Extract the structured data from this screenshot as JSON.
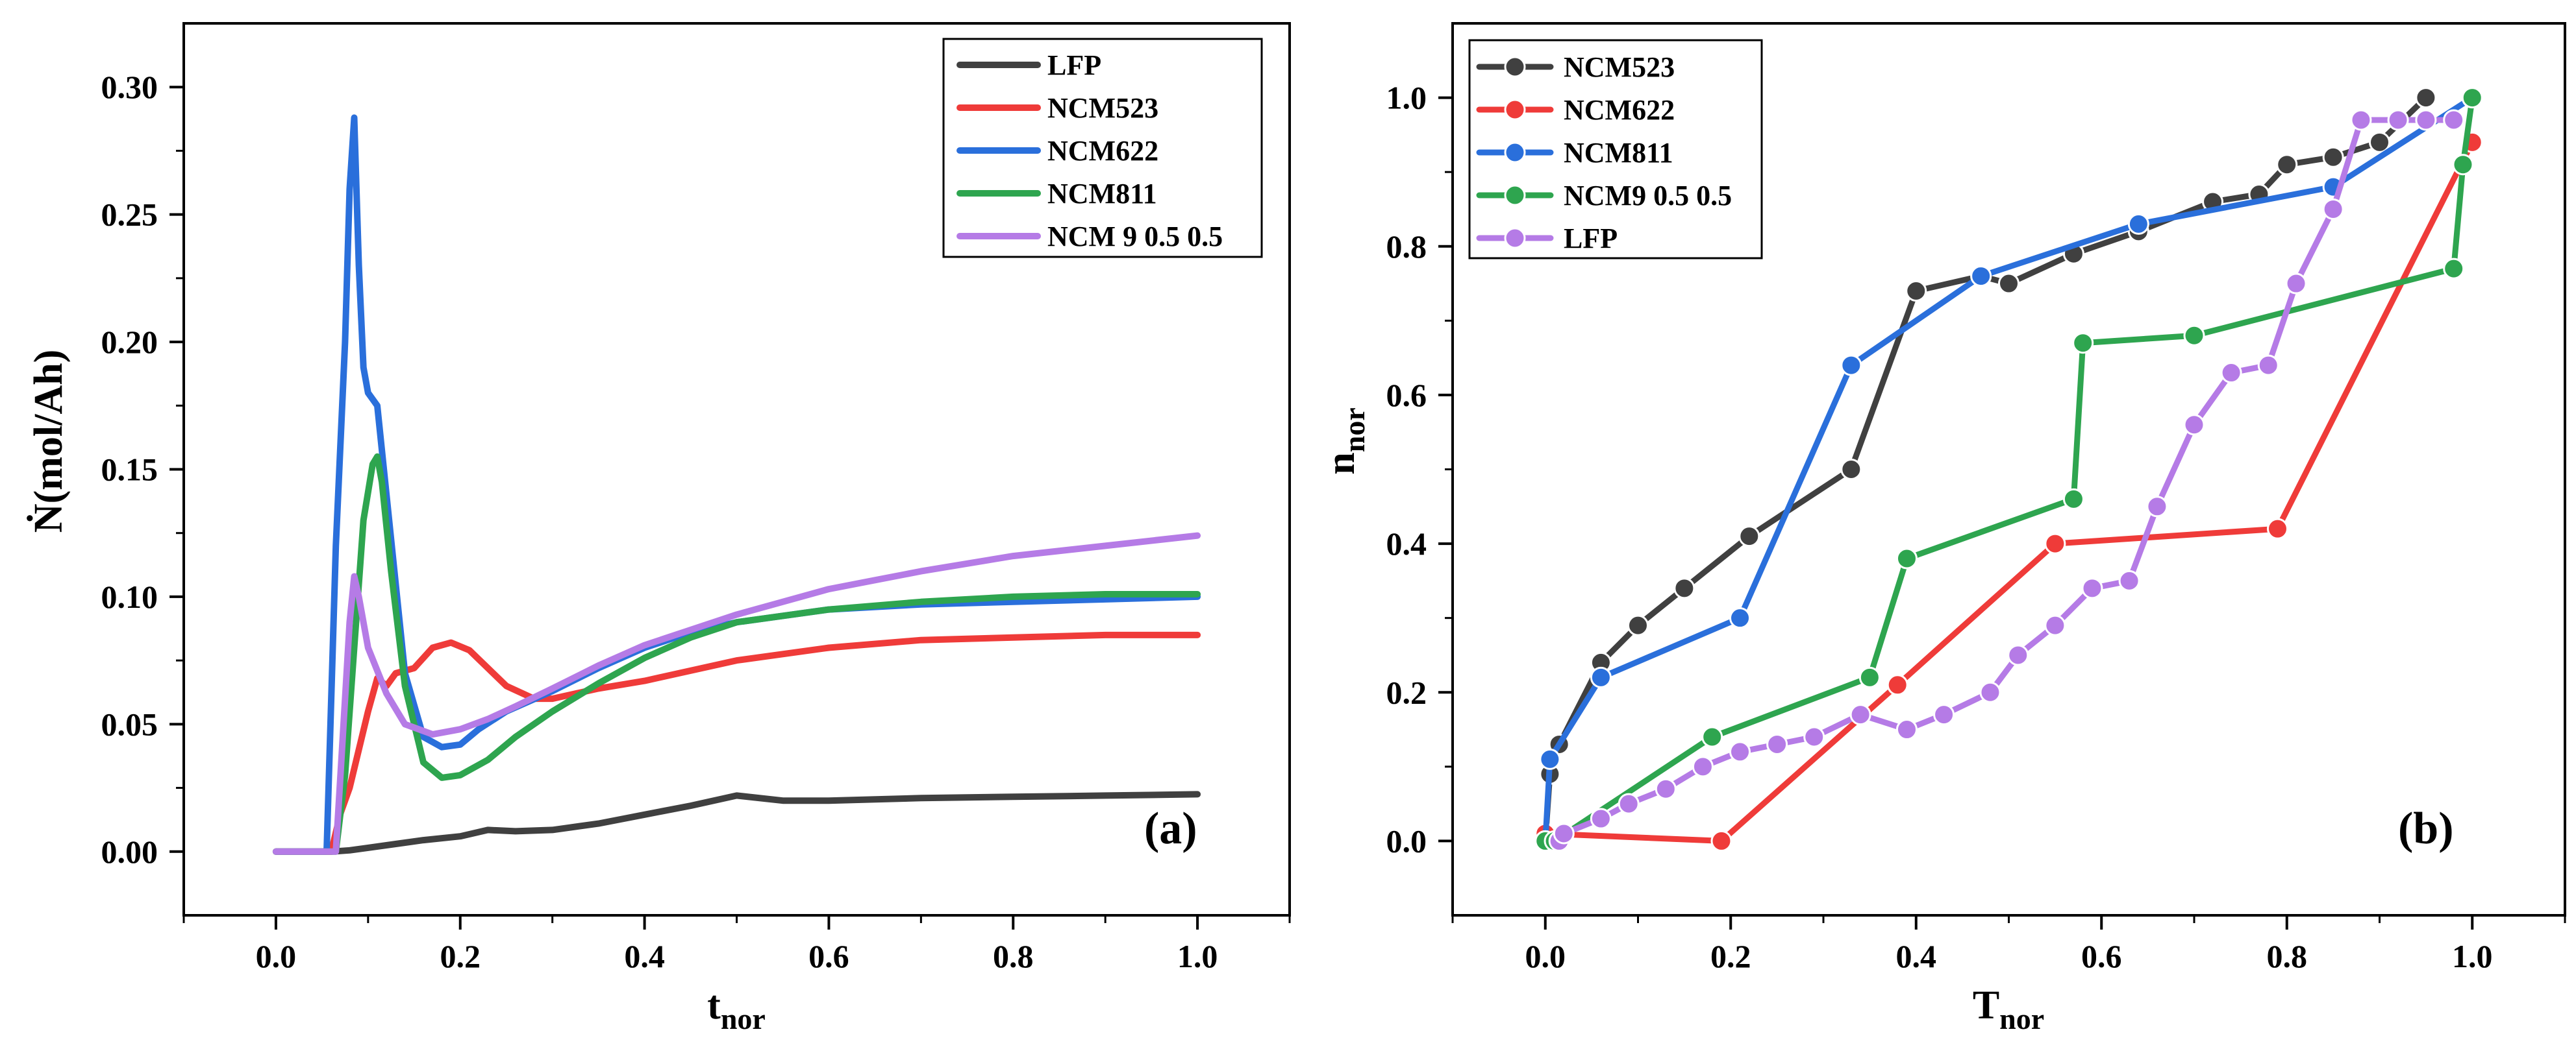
{
  "chart_data": [
    {
      "type": "line",
      "panel_label": "(a)",
      "title": "",
      "xlabel_main": "t",
      "xlabel_sub": "nor",
      "ylabel": "Ṅ(mol/Ah)",
      "xlim": [
        -0.1,
        1.1
      ],
      "ylim": [
        -0.025,
        0.325
      ],
      "xticks": [
        0.0,
        0.2,
        0.4,
        0.6,
        0.8,
        1.0
      ],
      "xtick_labels": [
        "0.0",
        "0.2",
        "0.4",
        "0.6",
        "0.8",
        "1.0"
      ],
      "yticks": [
        0.0,
        0.05,
        0.1,
        0.15,
        0.2,
        0.25,
        0.3
      ],
      "ytick_labels": [
        "0.00",
        "0.05",
        "0.10",
        "0.15",
        "0.20",
        "0.25",
        "0.30"
      ],
      "legend_position": "top-right",
      "series": [
        {
          "name": "LFP",
          "color": "#404040",
          "x": [
            0,
            0.06,
            0.08,
            0.1,
            0.13,
            0.16,
            0.2,
            0.23,
            0.26,
            0.3,
            0.35,
            0.4,
            0.45,
            0.5,
            0.55,
            0.6,
            0.7,
            0.8,
            0.9,
            1.0
          ],
          "y": [
            0,
            0,
            0.0005,
            0.0015,
            0.003,
            0.0045,
            0.006,
            0.0085,
            0.008,
            0.0085,
            0.011,
            0.0145,
            0.018,
            0.022,
            0.02,
            0.02,
            0.021,
            0.0215,
            0.022,
            0.0225
          ]
        },
        {
          "name": "NCM523",
          "color": "#ef3b39",
          "x": [
            0,
            0.06,
            0.07,
            0.08,
            0.09,
            0.1,
            0.11,
            0.12,
            0.13,
            0.15,
            0.17,
            0.19,
            0.21,
            0.23,
            0.25,
            0.28,
            0.3,
            0.35,
            0.4,
            0.5,
            0.6,
            0.7,
            0.8,
            0.9,
            1.0
          ],
          "y": [
            0,
            0,
            0.015,
            0.025,
            0.04,
            0.055,
            0.068,
            0.065,
            0.07,
            0.072,
            0.08,
            0.082,
            0.079,
            0.072,
            0.065,
            0.06,
            0.06,
            0.064,
            0.067,
            0.075,
            0.08,
            0.083,
            0.084,
            0.085,
            0.085
          ]
        },
        {
          "name": "NCM622",
          "color": "#2a6fdb",
          "x": [
            0,
            0.055,
            0.065,
            0.075,
            0.08,
            0.085,
            0.09,
            0.095,
            0.1,
            0.11,
            0.12,
            0.14,
            0.16,
            0.18,
            0.2,
            0.22,
            0.25,
            0.3,
            0.35,
            0.4,
            0.45,
            0.5,
            0.6,
            0.7,
            0.8,
            0.9,
            1.0
          ],
          "y": [
            0,
            0,
            0.12,
            0.2,
            0.26,
            0.288,
            0.23,
            0.19,
            0.18,
            0.175,
            0.14,
            0.07,
            0.045,
            0.041,
            0.042,
            0.048,
            0.055,
            0.063,
            0.072,
            0.08,
            0.086,
            0.09,
            0.095,
            0.097,
            0.098,
            0.099,
            0.1
          ]
        },
        {
          "name": "NCM811",
          "color": "#2ea54f",
          "x": [
            0,
            0.065,
            0.075,
            0.085,
            0.095,
            0.105,
            0.11,
            0.115,
            0.125,
            0.14,
            0.16,
            0.18,
            0.2,
            0.23,
            0.26,
            0.3,
            0.35,
            0.4,
            0.45,
            0.5,
            0.6,
            0.7,
            0.8,
            0.9,
            1.0
          ],
          "y": [
            0,
            0,
            0.03,
            0.08,
            0.13,
            0.152,
            0.155,
            0.145,
            0.11,
            0.065,
            0.035,
            0.029,
            0.03,
            0.036,
            0.045,
            0.055,
            0.066,
            0.076,
            0.084,
            0.09,
            0.095,
            0.098,
            0.1,
            0.101,
            0.101
          ]
        },
        {
          "name": "NCM 9 0.5 0.5",
          "color": "#b57be6",
          "x": [
            0,
            0.065,
            0.075,
            0.08,
            0.085,
            0.09,
            0.1,
            0.12,
            0.14,
            0.17,
            0.2,
            0.23,
            0.26,
            0.3,
            0.35,
            0.4,
            0.45,
            0.5,
            0.6,
            0.7,
            0.8,
            0.9,
            1.0
          ],
          "y": [
            0,
            0,
            0.06,
            0.09,
            0.108,
            0.1,
            0.08,
            0.062,
            0.05,
            0.046,
            0.048,
            0.052,
            0.057,
            0.064,
            0.073,
            0.081,
            0.087,
            0.093,
            0.103,
            0.11,
            0.116,
            0.12,
            0.124
          ]
        }
      ]
    },
    {
      "type": "line",
      "panel_label": "(b)",
      "title": "",
      "xlabel_main": "T",
      "xlabel_sub": "nor",
      "ylabel_main": "n",
      "ylabel_sub": "nor",
      "xlim": [
        -0.1,
        1.1
      ],
      "ylim": [
        -0.1,
        1.1
      ],
      "xticks": [
        0.0,
        0.2,
        0.4,
        0.6,
        0.8,
        1.0
      ],
      "xtick_labels": [
        "0.0",
        "0.2",
        "0.4",
        "0.6",
        "0.8",
        "1.0"
      ],
      "yticks": [
        0.0,
        0.2,
        0.4,
        0.6,
        0.8,
        1.0
      ],
      "ytick_labels": [
        "0.0",
        "0.2",
        "0.4",
        "0.6",
        "0.8",
        "1.0"
      ],
      "legend_position": "top-left",
      "markers": true,
      "series": [
        {
          "name": "NCM523",
          "color": "#404040",
          "x": [
            0.0,
            0.005,
            0.015,
            0.06,
            0.1,
            0.15,
            0.22,
            0.33,
            0.4,
            0.47,
            0.5,
            0.57,
            0.64,
            0.72,
            0.77,
            0.8,
            0.85,
            0.9,
            0.95
          ],
          "y": [
            0.0,
            0.09,
            0.13,
            0.24,
            0.29,
            0.34,
            0.41,
            0.5,
            0.74,
            0.76,
            0.75,
            0.79,
            0.82,
            0.86,
            0.87,
            0.91,
            0.92,
            0.94,
            1.0
          ]
        },
        {
          "name": "NCM622",
          "color": "#ef3b39",
          "x": [
            0.0,
            0.19,
            0.38,
            0.55,
            0.79,
            1.0
          ],
          "y": [
            0.01,
            0.0,
            0.21,
            0.4,
            0.42,
            0.94
          ]
        },
        {
          "name": "NCM811",
          "color": "#2a6fdb",
          "x": [
            0.0,
            0.005,
            0.06,
            0.21,
            0.33,
            0.47,
            0.64,
            0.85,
            1.0
          ],
          "y": [
            0.0,
            0.11,
            0.22,
            0.3,
            0.64,
            0.76,
            0.83,
            0.88,
            1.0
          ]
        },
        {
          "name": "NCM9 0.5 0.5",
          "color": "#2ea54f",
          "x": [
            0.0,
            0.01,
            0.18,
            0.35,
            0.39,
            0.57,
            0.58,
            0.7,
            0.98,
            0.99,
            1.0
          ],
          "y": [
            0.0,
            0.0,
            0.14,
            0.22,
            0.38,
            0.46,
            0.67,
            0.68,
            0.77,
            0.91,
            1.0
          ]
        },
        {
          "name": "LFP",
          "color": "#b57be6",
          "x": [
            0.015,
            0.02,
            0.06,
            0.09,
            0.13,
            0.17,
            0.21,
            0.25,
            0.29,
            0.34,
            0.39,
            0.43,
            0.48,
            0.51,
            0.55,
            0.59,
            0.63,
            0.66,
            0.7,
            0.74,
            0.78,
            0.81,
            0.85,
            0.88,
            0.92,
            0.95,
            0.98
          ],
          "y": [
            0.0,
            0.01,
            0.03,
            0.05,
            0.07,
            0.1,
            0.12,
            0.13,
            0.14,
            0.17,
            0.15,
            0.17,
            0.2,
            0.25,
            0.29,
            0.34,
            0.35,
            0.45,
            0.56,
            0.63,
            0.64,
            0.75,
            0.85,
            0.97,
            0.97,
            0.97,
            0.97
          ]
        }
      ]
    }
  ]
}
